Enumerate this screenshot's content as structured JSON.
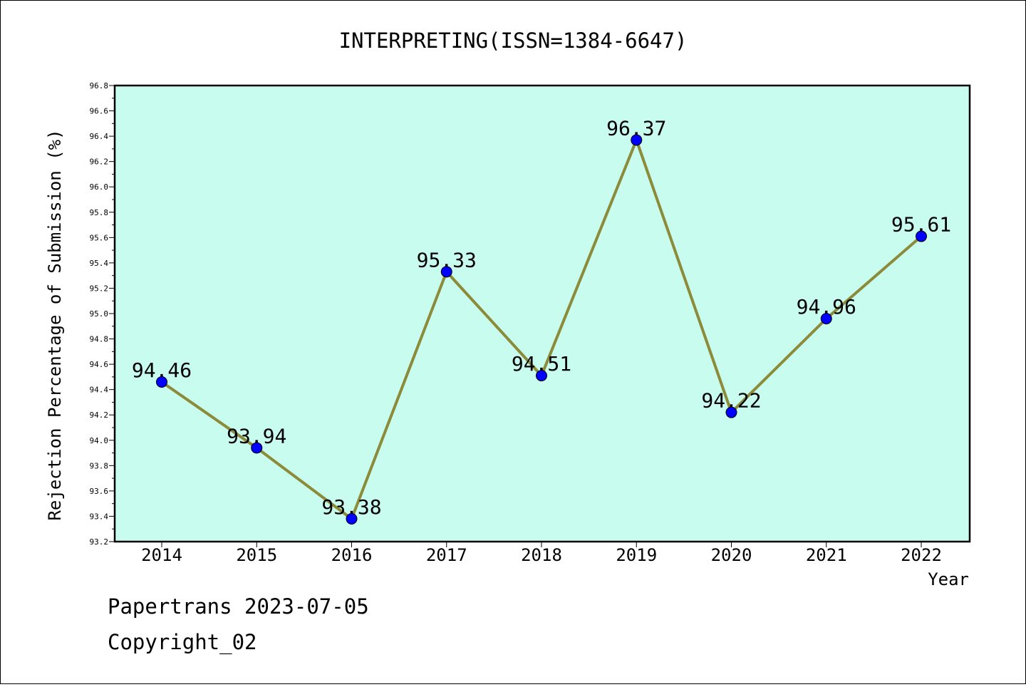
{
  "chart_data": {
    "type": "line",
    "title": "INTERPRETING(ISSN=1384-6647)",
    "xlabel": "Year",
    "ylabel": "Rejection Percentage of Submission (%)",
    "categories": [
      "2014",
      "2015",
      "2016",
      "2017",
      "2018",
      "2019",
      "2020",
      "2021",
      "2022"
    ],
    "series": [
      {
        "values": [
          94.46,
          93.94,
          93.38,
          95.33,
          94.51,
          96.37,
          94.22,
          94.96,
          95.61
        ]
      }
    ],
    "data_labels": [
      "94.46",
      "93.94",
      "93.38",
      "95.33",
      "94.51",
      "96.37",
      "94.22",
      "94.96",
      "95.61"
    ],
    "ylim": [
      93.2,
      96.8
    ],
    "yticks": [
      "93.2",
      "93.4",
      "93.6",
      "93.8",
      "94.0",
      "94.2",
      "94.4",
      "94.6",
      "94.8",
      "95.0",
      "95.2",
      "95.4",
      "95.6",
      "95.8",
      "96.0",
      "96.2",
      "96.4",
      "96.6",
      "96.8"
    ],
    "grid": false,
    "legend": "none",
    "colors": {
      "plot_background": "#c8fcee",
      "line": "#8b8b3a",
      "marker": "#0000ff"
    }
  },
  "footer": {
    "line1": "Papertrans 2023-07-05",
    "line2": "Copyright_02"
  }
}
